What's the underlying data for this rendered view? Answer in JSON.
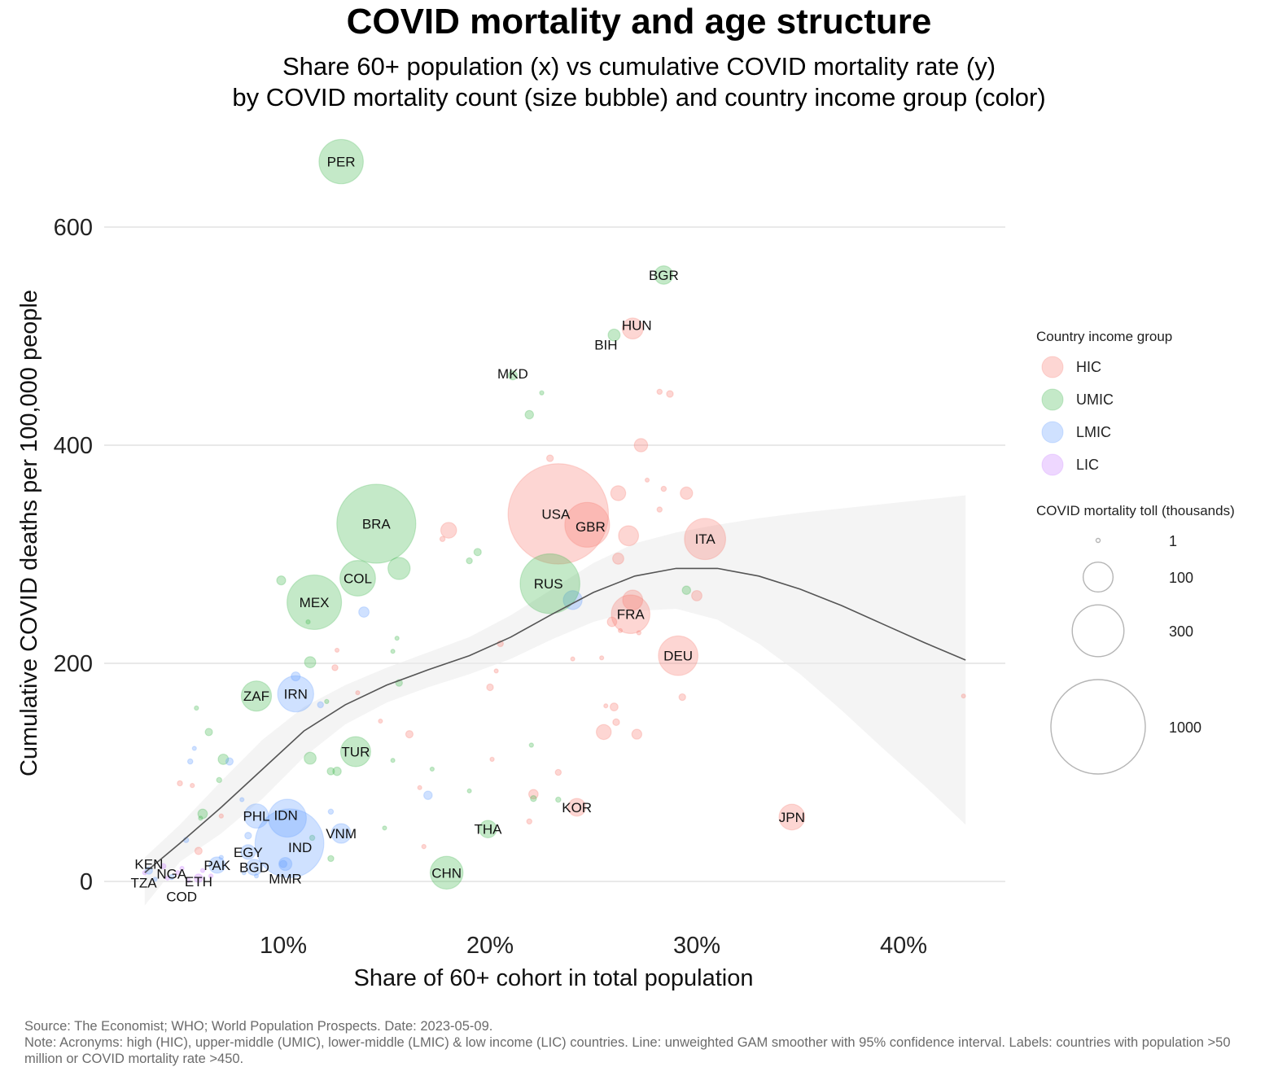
{
  "header": {
    "title": "COVID mortality and age structure",
    "subtitle_line1": "Share 60+ population (x) vs cumulative COVID mortality rate (y)",
    "subtitle_line2": "by COVID mortality count (size bubble) and country income group (color)"
  },
  "footer": {
    "source": "Source: The Economist; WHO; World Population Prospects. Date: 2023-05-09.",
    "note": "Note: Acronyms: high (HIC), upper-middle (UMIC), lower-middle (LMIC) & low income (LIC) countries. Line: unweighted GAM smoother with 95% confidence interval. Labels: countries with population >50 million or COVID mortality rate >450."
  },
  "chart_data": {
    "type": "scatter",
    "title": "COVID mortality and age structure",
    "xlabel": "Share of 60+ cohort in total population",
    "ylabel": "Cumulative COVID deaths per 100,000 people",
    "xlim": [
      1.5,
      45
    ],
    "ylim": [
      -30,
      690
    ],
    "x_ticks": [
      10,
      20,
      30,
      40
    ],
    "x_tick_labels": [
      "10%",
      "20%",
      "30%",
      "40%"
    ],
    "y_ticks": [
      0,
      200,
      400,
      600
    ],
    "y_tick_labels": [
      "0",
      "200",
      "400",
      "600"
    ],
    "grid": "horizontal major",
    "colors": {
      "HIC": "#f8766d",
      "UMIC": "#3cb54a",
      "LMIC": "#619cff",
      "LIC": "#c77cff"
    },
    "legend": {
      "placement": "right",
      "color_title": "Country income group",
      "color_entries": [
        "HIC",
        "UMIC",
        "LMIC",
        "LIC"
      ],
      "size_title": "COVID mortality toll (thousands)",
      "size_entries": [
        1,
        100,
        300,
        1000
      ],
      "size_labels": [
        "1",
        "100",
        "300",
        "1000"
      ]
    },
    "labeled_points": [
      {
        "label": "PER",
        "group": "UMIC",
        "x": 12.8,
        "y": 660,
        "toll": 220
      },
      {
        "label": "BGR",
        "group": "UMIC",
        "x": 28.4,
        "y": 556,
        "toll": 38
      },
      {
        "label": "HUN",
        "group": "HIC",
        "x": 26.9,
        "y": 507,
        "toll": 49
      },
      {
        "label": "BIH",
        "group": "UMIC",
        "x": 26.0,
        "y": 501,
        "toll": 16
      },
      {
        "label": "MKD",
        "group": "UMIC",
        "x": 21.1,
        "y": 464,
        "toll": 9
      },
      {
        "label": "BRA",
        "group": "UMIC",
        "x": 14.5,
        "y": 328,
        "toll": 700
      },
      {
        "label": "USA",
        "group": "HIC",
        "x": 23.3,
        "y": 337,
        "toll": 1130
      },
      {
        "label": "GBR",
        "group": "HIC",
        "x": 24.7,
        "y": 327,
        "toll": 225
      },
      {
        "label": "ITA",
        "group": "HIC",
        "x": 30.4,
        "y": 314,
        "toll": 190
      },
      {
        "label": "COL",
        "group": "UMIC",
        "x": 13.6,
        "y": 278,
        "toll": 142
      },
      {
        "label": "MEX",
        "group": "UMIC",
        "x": 11.5,
        "y": 256,
        "toll": 333
      },
      {
        "label": "RUS",
        "group": "UMIC",
        "x": 22.9,
        "y": 273,
        "toll": 400
      },
      {
        "label": "FRA",
        "group": "HIC",
        "x": 26.8,
        "y": 245,
        "toll": 167
      },
      {
        "label": "DEU",
        "group": "HIC",
        "x": 29.1,
        "y": 207,
        "toll": 175
      },
      {
        "label": "ZAF",
        "group": "UMIC",
        "x": 8.7,
        "y": 170,
        "toll": 102
      },
      {
        "label": "IRN",
        "group": "LMIC",
        "x": 10.6,
        "y": 172,
        "toll": 146
      },
      {
        "label": "TUR",
        "group": "UMIC",
        "x": 13.5,
        "y": 119,
        "toll": 101
      },
      {
        "label": "KOR",
        "group": "HIC",
        "x": 24.2,
        "y": 68,
        "toll": 35
      },
      {
        "label": "JPN",
        "group": "HIC",
        "x": 34.6,
        "y": 59,
        "toll": 74
      },
      {
        "label": "THA",
        "group": "UMIC",
        "x": 19.9,
        "y": 48,
        "toll": 34
      },
      {
        "label": "CHN",
        "group": "UMIC",
        "x": 17.9,
        "y": 8,
        "toll": 121
      },
      {
        "label": "PHL",
        "group": "LMIC",
        "x": 8.7,
        "y": 60,
        "toll": 66
      },
      {
        "label": "IDN",
        "group": "LMIC",
        "x": 10.2,
        "y": 58,
        "toll": 161
      },
      {
        "label": "IND",
        "group": "LMIC",
        "x": 10.3,
        "y": 35,
        "toll": 531
      },
      {
        "label": "VNM",
        "group": "LMIC",
        "x": 12.8,
        "y": 44,
        "toll": 43
      },
      {
        "label": "MMR",
        "group": "LMIC",
        "x": 10.1,
        "y": 16,
        "toll": 19
      },
      {
        "label": "EGY",
        "group": "LMIC",
        "x": 8.3,
        "y": 27,
        "toll": 24
      },
      {
        "label": "BGD",
        "group": "LMIC",
        "x": 8.6,
        "y": 13,
        "toll": 29
      },
      {
        "label": "PAK",
        "group": "LMIC",
        "x": 6.8,
        "y": 15,
        "toll": 30
      },
      {
        "label": "KEN",
        "group": "LMIC",
        "x": 3.5,
        "y": 10,
        "toll": 6
      },
      {
        "label": "NGA",
        "group": "LMIC",
        "x": 4.6,
        "y": 4,
        "toll": 3
      },
      {
        "label": "TZA",
        "group": "LMIC",
        "x": 3.8,
        "y": 2,
        "toll": 1
      },
      {
        "label": "ETH",
        "group": "LIC",
        "x": 5.9,
        "y": 3,
        "toll": 8
      },
      {
        "label": "COD",
        "group": "LIC",
        "x": 5.4,
        "y": 1,
        "toll": 2
      }
    ],
    "unlabeled_points": [
      {
        "group": "HIC",
        "x": 27.3,
        "y": 400,
        "toll": 20
      },
      {
        "group": "HIC",
        "x": 28.2,
        "y": 449,
        "toll": 3
      },
      {
        "group": "HIC",
        "x": 28.7,
        "y": 447,
        "toll": 5
      },
      {
        "group": "HIC",
        "x": 22.9,
        "y": 388,
        "toll": 5
      },
      {
        "group": "HIC",
        "x": 26.2,
        "y": 356,
        "toll": 25
      },
      {
        "group": "HIC",
        "x": 28.4,
        "y": 360,
        "toll": 3
      },
      {
        "group": "HIC",
        "x": 29.5,
        "y": 356,
        "toll": 17
      },
      {
        "group": "HIC",
        "x": 28.2,
        "y": 341,
        "toll": 3
      },
      {
        "group": "HIC",
        "x": 27.6,
        "y": 368,
        "toll": 1
      },
      {
        "group": "HIC",
        "x": 26.7,
        "y": 317,
        "toll": 45
      },
      {
        "group": "HIC",
        "x": 26.2,
        "y": 296,
        "toll": 14
      },
      {
        "group": "HIC",
        "x": 18.0,
        "y": 322,
        "toll": 28
      },
      {
        "group": "HIC",
        "x": 17.7,
        "y": 314,
        "toll": 3
      },
      {
        "group": "HIC",
        "x": 26.9,
        "y": 258,
        "toll": 45
      },
      {
        "group": "HIC",
        "x": 30.0,
        "y": 262,
        "toll": 12
      },
      {
        "group": "HIC",
        "x": 25.9,
        "y": 238,
        "toll": 10
      },
      {
        "group": "HIC",
        "x": 26.3,
        "y": 230,
        "toll": 1
      },
      {
        "group": "HIC",
        "x": 27.2,
        "y": 228,
        "toll": 2
      },
      {
        "group": "HIC",
        "x": 20.5,
        "y": 218,
        "toll": 4
      },
      {
        "group": "HIC",
        "x": 12.6,
        "y": 212,
        "toll": 1
      },
      {
        "group": "HIC",
        "x": 12.5,
        "y": 196,
        "toll": 4
      },
      {
        "group": "HIC",
        "x": 20.3,
        "y": 193,
        "toll": 1
      },
      {
        "group": "HIC",
        "x": 20.0,
        "y": 178,
        "toll": 5
      },
      {
        "group": "HIC",
        "x": 24.0,
        "y": 204,
        "toll": 1
      },
      {
        "group": "HIC",
        "x": 25.4,
        "y": 205,
        "toll": 1
      },
      {
        "group": "HIC",
        "x": 29.3,
        "y": 169,
        "toll": 5
      },
      {
        "group": "HIC",
        "x": 26.0,
        "y": 160,
        "toll": 7
      },
      {
        "group": "HIC",
        "x": 25.6,
        "y": 161,
        "toll": 1
      },
      {
        "group": "HIC",
        "x": 26.1,
        "y": 146,
        "toll": 5
      },
      {
        "group": "HIC",
        "x": 25.5,
        "y": 137,
        "toll": 25
      },
      {
        "group": "HIC",
        "x": 27.1,
        "y": 135,
        "toll": 11
      },
      {
        "group": "HIC",
        "x": 16.1,
        "y": 135,
        "toll": 6
      },
      {
        "group": "HIC",
        "x": 14.7,
        "y": 147,
        "toll": 1
      },
      {
        "group": "HIC",
        "x": 13.6,
        "y": 173,
        "toll": 1
      },
      {
        "group": "HIC",
        "x": 20.1,
        "y": 112,
        "toll": 2
      },
      {
        "group": "HIC",
        "x": 23.3,
        "y": 100,
        "toll": 4
      },
      {
        "group": "HIC",
        "x": 22.1,
        "y": 80,
        "toll": 10
      },
      {
        "group": "HIC",
        "x": 21.9,
        "y": 55,
        "toll": 3
      },
      {
        "group": "HIC",
        "x": 16.8,
        "y": 32,
        "toll": 2
      },
      {
        "group": "HIC",
        "x": 16.6,
        "y": 86,
        "toll": 1
      },
      {
        "group": "HIC",
        "x": 42.9,
        "y": 170,
        "toll": 1
      },
      {
        "group": "HIC",
        "x": 5.0,
        "y": 90,
        "toll": 3
      },
      {
        "group": "HIC",
        "x": 5.6,
        "y": 88,
        "toll": 2
      },
      {
        "group": "HIC",
        "x": 7.0,
        "y": 60,
        "toll": 2
      },
      {
        "group": "HIC",
        "x": 5.9,
        "y": 28,
        "toll": 6
      },
      {
        "group": "UMIC",
        "x": 22.5,
        "y": 448,
        "toll": 2
      },
      {
        "group": "UMIC",
        "x": 21.9,
        "y": 428,
        "toll": 8
      },
      {
        "group": "UMIC",
        "x": 15.6,
        "y": 287,
        "toll": 55
      },
      {
        "group": "UMIC",
        "x": 9.9,
        "y": 276,
        "toll": 9
      },
      {
        "group": "UMIC",
        "x": 19.4,
        "y": 302,
        "toll": 6
      },
      {
        "group": "UMIC",
        "x": 19.0,
        "y": 294,
        "toll": 4
      },
      {
        "group": "UMIC",
        "x": 29.5,
        "y": 267,
        "toll": 8
      },
      {
        "group": "UMIC",
        "x": 11.2,
        "y": 238,
        "toll": 2
      },
      {
        "group": "UMIC",
        "x": 11.3,
        "y": 201,
        "toll": 14
      },
      {
        "group": "UMIC",
        "x": 15.5,
        "y": 223,
        "toll": 1
      },
      {
        "group": "UMIC",
        "x": 15.3,
        "y": 211,
        "toll": 1
      },
      {
        "group": "UMIC",
        "x": 15.6,
        "y": 182,
        "toll": 5
      },
      {
        "group": "UMIC",
        "x": 12.1,
        "y": 165,
        "toll": 2
      },
      {
        "group": "UMIC",
        "x": 5.8,
        "y": 159,
        "toll": 2
      },
      {
        "group": "UMIC",
        "x": 6.4,
        "y": 137,
        "toll": 6
      },
      {
        "group": "UMIC",
        "x": 11.3,
        "y": 113,
        "toll": 16
      },
      {
        "group": "UMIC",
        "x": 7.1,
        "y": 112,
        "toll": 12
      },
      {
        "group": "UMIC",
        "x": 6.9,
        "y": 93,
        "toll": 3
      },
      {
        "group": "UMIC",
        "x": 12.6,
        "y": 101,
        "toll": 8
      },
      {
        "group": "UMIC",
        "x": 12.3,
        "y": 101,
        "toll": 6
      },
      {
        "group": "UMIC",
        "x": 15.3,
        "y": 111,
        "toll": 1
      },
      {
        "group": "UMIC",
        "x": 22.0,
        "y": 125,
        "toll": 2
      },
      {
        "group": "UMIC",
        "x": 17.2,
        "y": 103,
        "toll": 1
      },
      {
        "group": "UMIC",
        "x": 19.0,
        "y": 83,
        "toll": 1
      },
      {
        "group": "UMIC",
        "x": 22.1,
        "y": 76,
        "toll": 4
      },
      {
        "group": "UMIC",
        "x": 23.3,
        "y": 75,
        "toll": 3
      },
      {
        "group": "UMIC",
        "x": 6.1,
        "y": 62,
        "toll": 10
      },
      {
        "group": "UMIC",
        "x": 14.9,
        "y": 49,
        "toll": 1
      },
      {
        "group": "UMIC",
        "x": 11.4,
        "y": 40,
        "toll": 3
      },
      {
        "group": "UMIC",
        "x": 12.3,
        "y": 21,
        "toll": 4
      },
      {
        "group": "UMIC",
        "x": 6.0,
        "y": 58,
        "toll": 1
      },
      {
        "group": "LMIC",
        "x": 24.0,
        "y": 258,
        "toll": 40
      },
      {
        "group": "LMIC",
        "x": 13.9,
        "y": 247,
        "toll": 12
      },
      {
        "group": "LMIC",
        "x": 10.6,
        "y": 188,
        "toll": 9
      },
      {
        "group": "LMIC",
        "x": 11.8,
        "y": 162,
        "toll": 4
      },
      {
        "group": "LMIC",
        "x": 7.4,
        "y": 110,
        "toll": 6
      },
      {
        "group": "LMIC",
        "x": 5.5,
        "y": 110,
        "toll": 3
      },
      {
        "group": "LMIC",
        "x": 5.7,
        "y": 122,
        "toll": 1
      },
      {
        "group": "LMIC",
        "x": 17.0,
        "y": 79,
        "toll": 8
      },
      {
        "group": "LMIC",
        "x": 12.3,
        "y": 64,
        "toll": 3
      },
      {
        "group": "LMIC",
        "x": 8.0,
        "y": 75,
        "toll": 1
      },
      {
        "group": "LMIC",
        "x": 5.3,
        "y": 38,
        "toll": 3
      },
      {
        "group": "LMIC",
        "x": 8.3,
        "y": 42,
        "toll": 5
      },
      {
        "group": "LMIC",
        "x": 7.0,
        "y": 22,
        "toll": 2
      },
      {
        "group": "LMIC",
        "x": 8.7,
        "y": 5,
        "toll": 1
      },
      {
        "group": "LMIC",
        "x": 8.1,
        "y": 8,
        "toll": 1
      },
      {
        "group": "LMIC",
        "x": 10.0,
        "y": 16,
        "toll": 6
      },
      {
        "group": "LIC",
        "x": 3.3,
        "y": 8,
        "toll": 2
      },
      {
        "group": "LIC",
        "x": 4.2,
        "y": 14,
        "toll": 3
      },
      {
        "group": "LIC",
        "x": 4.9,
        "y": 8,
        "toll": 2
      },
      {
        "group": "LIC",
        "x": 4.4,
        "y": 3,
        "toll": 1
      },
      {
        "group": "LIC",
        "x": 5.1,
        "y": 12,
        "toll": 1
      },
      {
        "group": "LIC",
        "x": 6.5,
        "y": 5,
        "toll": 2
      },
      {
        "group": "LIC",
        "x": 6.1,
        "y": 10,
        "toll": 1
      }
    ],
    "smoother": {
      "x": [
        3.3,
        5,
        7,
        9,
        11,
        13,
        15,
        17,
        19,
        21,
        23,
        25,
        27,
        29,
        31,
        33,
        35,
        37,
        39,
        41,
        43
      ],
      "y": [
        8,
        35,
        68,
        103,
        138,
        162,
        180,
        194,
        207,
        224,
        245,
        265,
        280,
        287,
        287,
        280,
        268,
        253,
        236,
        219,
        203
      ],
      "ci_upper": [
        22,
        52,
        92,
        130,
        160,
        180,
        196,
        210,
        224,
        244,
        268,
        292,
        310,
        320,
        327,
        333,
        338,
        342,
        346,
        350,
        354
      ],
      "ci_lower": [
        -22,
        18,
        44,
        76,
        114,
        144,
        164,
        178,
        190,
        204,
        222,
        238,
        248,
        250,
        240,
        218,
        190,
        157,
        122,
        88,
        52
      ]
    }
  }
}
